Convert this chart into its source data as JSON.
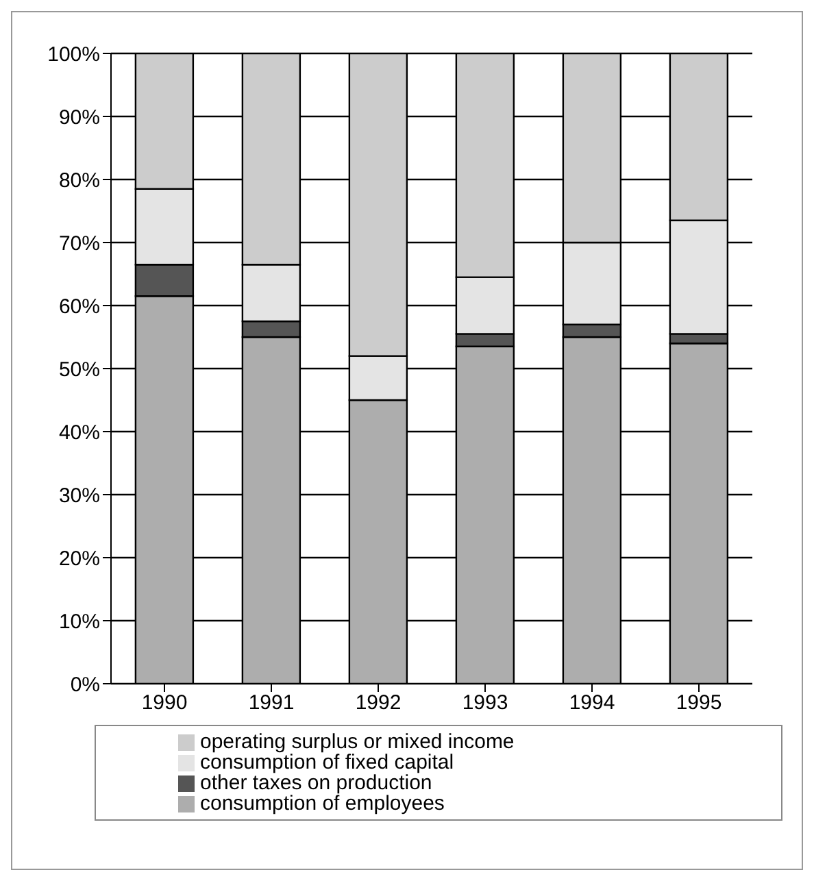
{
  "chart_data": {
    "type": "bar",
    "stacked": true,
    "categories": [
      "1990",
      "1991",
      "1992",
      "1993",
      "1994",
      "1995"
    ],
    "series": [
      {
        "name": "consumption of employees",
        "color": "#adadad",
        "values": [
          61.5,
          55,
          45,
          53.5,
          55,
          54
        ]
      },
      {
        "name": "other taxes on production",
        "color": "#555555",
        "values": [
          5,
          2.5,
          0,
          2,
          2,
          1.5
        ]
      },
      {
        "name": "consumption of fixed capital",
        "color": "#e4e4e4",
        "values": [
          12,
          9,
          7,
          9,
          13,
          18
        ]
      },
      {
        "name": "operating surplus or mixed income",
        "color": "#cccccc",
        "values": [
          21.5,
          33.5,
          48,
          35.5,
          30,
          26.5
        ]
      }
    ],
    "ylim": [
      0,
      100
    ],
    "yticks": [
      {
        "value": 0,
        "label": "0%"
      },
      {
        "value": 10,
        "label": "10%"
      },
      {
        "value": 20,
        "label": "20%"
      },
      {
        "value": 30,
        "label": "30%"
      },
      {
        "value": 40,
        "label": "40%"
      },
      {
        "value": 50,
        "label": "50%"
      },
      {
        "value": 60,
        "label": "60%"
      },
      {
        "value": 70,
        "label": "70%"
      },
      {
        "value": 80,
        "label": "80%"
      },
      {
        "value": 90,
        "label": "90%"
      },
      {
        "value": 100,
        "label": "100%"
      }
    ],
    "grid": "y",
    "legend": "bottom"
  }
}
